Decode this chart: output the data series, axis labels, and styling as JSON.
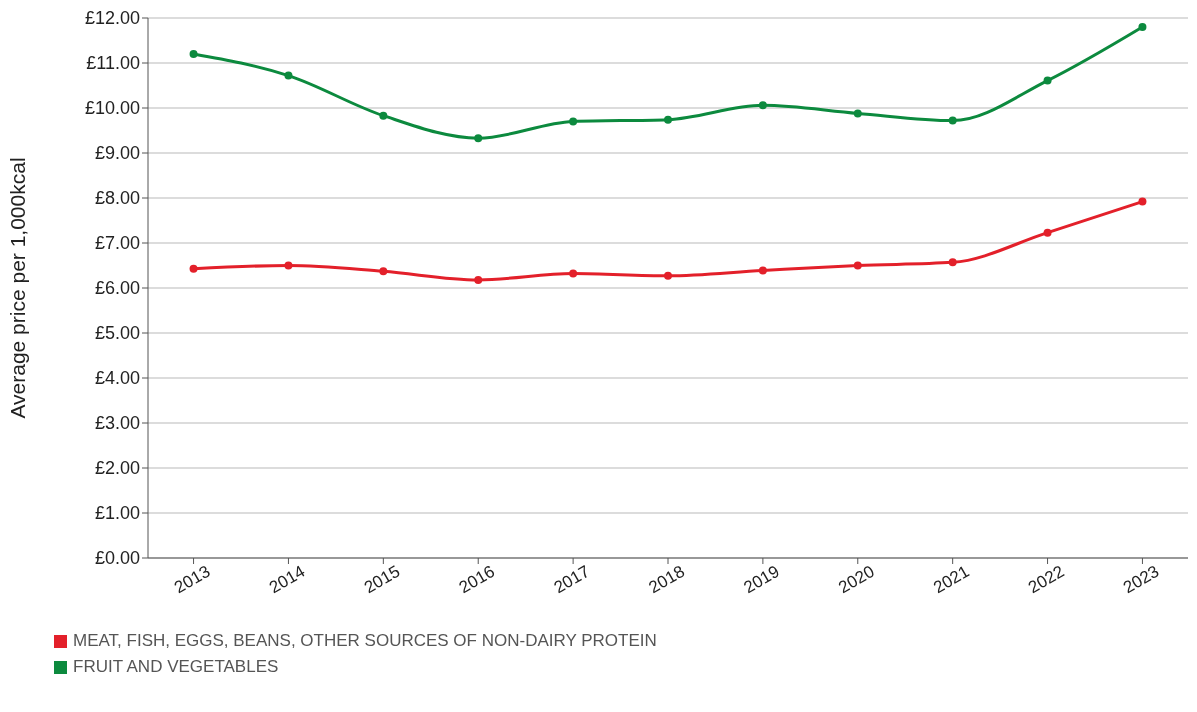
{
  "chart_data": {
    "type": "line",
    "ylabel": "Average price per 1,000kcal",
    "categories": [
      "2013",
      "2014",
      "2015",
      "2016",
      "2017",
      "2018",
      "2019",
      "2020",
      "2021",
      "2022",
      "2023"
    ],
    "series": [
      {
        "name": "MEAT, FISH, EGGS, BEANS, OTHER SOURCES OF NON-DAIRY PROTEIN",
        "color": "#e3202a",
        "values": [
          6.43,
          6.5,
          6.37,
          6.18,
          6.32,
          6.27,
          6.39,
          6.5,
          6.57,
          7.23,
          7.92
        ]
      },
      {
        "name": "FRUIT AND VEGETABLES",
        "color": "#0c8a3e",
        "values": [
          11.2,
          10.72,
          9.83,
          9.33,
          9.7,
          9.74,
          10.06,
          9.88,
          9.72,
          10.61,
          11.8
        ]
      }
    ],
    "ylim": [
      0,
      12
    ],
    "yticks": [
      {
        "value": 0,
        "label": "£0.00"
      },
      {
        "value": 1,
        "label": "£1.00"
      },
      {
        "value": 2,
        "label": "£2.00"
      },
      {
        "value": 3,
        "label": "£3.00"
      },
      {
        "value": 4,
        "label": "£4.00"
      },
      {
        "value": 5,
        "label": "£5.00"
      },
      {
        "value": 6,
        "label": "£6.00"
      },
      {
        "value": 7,
        "label": "£7.00"
      },
      {
        "value": 8,
        "label": "£8.00"
      },
      {
        "value": 9,
        "label": "£9.00"
      },
      {
        "value": 10,
        "label": "£10.00"
      },
      {
        "value": 11,
        "label": "£11.00"
      },
      {
        "value": 12,
        "label": "£12.00"
      }
    ],
    "grid": "y",
    "legend": "bottom left",
    "marker": "circle",
    "line_style": "solid"
  }
}
